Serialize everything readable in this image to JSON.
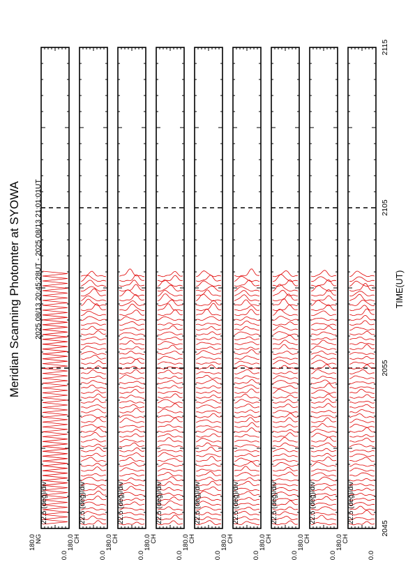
{
  "title": "Meridian Scanning Photomter at SYOWA",
  "time_range": "2025 08/13 20:45:28UT - 2025 08/13 21:01:01UT",
  "x_axis_label": "TIME(UT)",
  "time_ticks": [
    "2045",
    "2055",
    "2105",
    "2115"
  ],
  "colors": {
    "trace": "#e00000",
    "axis": "#000000",
    "background": "#ffffff"
  },
  "chart_data": {
    "type": "line",
    "xlabel": "TIME(UT)",
    "xlim": [
      "2045",
      "2115"
    ],
    "data_end": "2101",
    "panels": [
      {
        "channel": "NG",
        "scale": "22.5 (deg)/div",
        "ymax_label": "180.0",
        "ymin_label": "0.0"
      },
      {
        "channel": "CH",
        "scale": "22.5 (deg)/div",
        "ymax_label": "180.0",
        "ymin_label": "0.0"
      },
      {
        "channel": "CH",
        "scale": "22.5 (deg)/div",
        "ymax_label": "180.0",
        "ymin_label": "0.0"
      },
      {
        "channel": "CH",
        "scale": "22.5 (deg)/div",
        "ymax_label": "180.0",
        "ymin_label": "0.0"
      },
      {
        "channel": "CH",
        "scale": "22.5 (deg)/div",
        "ymax_label": "180.0",
        "ymin_label": "0.0"
      },
      {
        "channel": "CH",
        "scale": "22.5 (deg)/div",
        "ymax_label": "180.0",
        "ymin_label": "0.0"
      },
      {
        "channel": "CH",
        "scale": "22.5 (deg)/div",
        "ymax_label": "180.0",
        "ymin_label": "0.0"
      },
      {
        "channel": "CH",
        "scale": "22.5 (deg)/div",
        "ymax_label": "180.0",
        "ymin_label": "0.0"
      },
      {
        "channel": "CH",
        "scale": "22.5 (deg)/div",
        "ymax_label": "180.0",
        "ymin_label": "0.0"
      }
    ]
  }
}
